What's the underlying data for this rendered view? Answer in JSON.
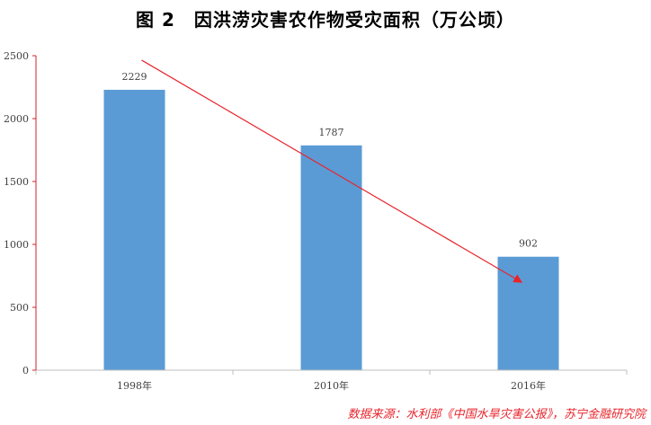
{
  "chart_data": {
    "type": "bar",
    "title": "图 2　因洪涝灾害农作物受灾面积（万公顷）",
    "categories": [
      "1998年",
      "2010年",
      "2016年"
    ],
    "values": [
      2229,
      1787,
      902
    ],
    "data_labels": [
      "2229",
      "1787",
      "902"
    ],
    "ylim": [
      0,
      2500
    ],
    "yticks": [
      0,
      500,
      1000,
      1500,
      2000,
      2500
    ],
    "xlabel": "",
    "ylabel": "",
    "grid": false,
    "legend": "none",
    "annotations": [
      "declining trend arrow"
    ],
    "colors": {
      "bar": "#5b9bd5",
      "axis": "#d0202a",
      "arrow": "#e8242c"
    }
  },
  "source": "数据来源：水利部《中国水旱灾害公报》，苏宁金融研究院"
}
